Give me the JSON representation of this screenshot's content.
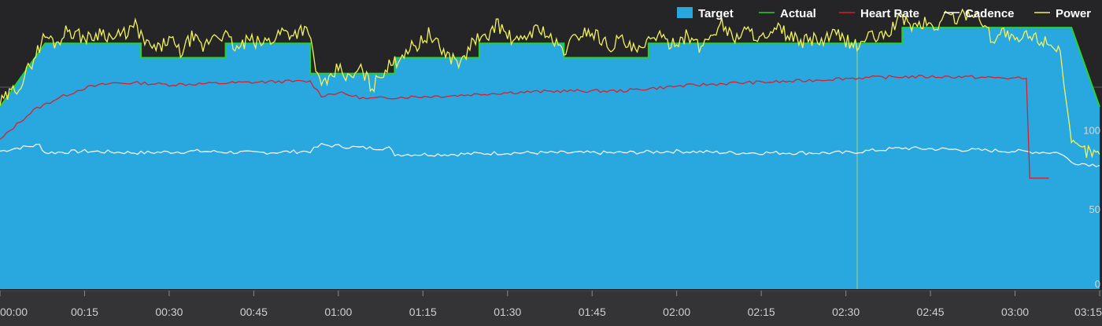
{
  "colors": {
    "background": "#252527",
    "target": "#29a8e0",
    "actual": "#2bd12b",
    "heart_rate": "#d8202a",
    "cadence": "#ffffff",
    "power": "#f2f25a",
    "cursor": "#9ccf8c",
    "axis_band": "#343437"
  },
  "chart_data": {
    "type": "area",
    "grid": false,
    "legend_position": "top-right",
    "legend": [
      {
        "label": "Target",
        "symbol": "box"
      },
      {
        "label": "Actual",
        "symbol": "line"
      },
      {
        "label": "Heart Rate",
        "symbol": "line"
      },
      {
        "label": "Cadence",
        "symbol": "line"
      },
      {
        "label": "Power",
        "symbol": "line"
      }
    ],
    "x_tick_labels": [
      "00:00",
      "00:15",
      "00:30",
      "00:45",
      "01:00",
      "01:15",
      "01:30",
      "01:45",
      "02:00",
      "02:15",
      "02:30",
      "02:45",
      "03:00",
      "03:15"
    ],
    "x_unit": "minutes",
    "xlim": [
      0,
      195
    ],
    "y_tick_labels": [
      "0",
      "50",
      "100"
    ],
    "y_ticks": [
      0,
      50,
      100
    ],
    "ylim": [
      0,
      173
    ],
    "cursor_x": 152,
    "series": [
      {
        "name": "Target",
        "kind": "area",
        "points": [
          [
            0,
            115
          ],
          [
            8,
            155
          ],
          [
            25,
            155
          ],
          [
            25,
            146
          ],
          [
            40,
            146
          ],
          [
            40,
            155
          ],
          [
            55,
            155
          ],
          [
            55,
            136
          ],
          [
            70,
            136
          ],
          [
            70,
            146
          ],
          [
            85,
            146
          ],
          [
            85,
            155
          ],
          [
            100,
            155
          ],
          [
            100,
            146
          ],
          [
            115,
            146
          ],
          [
            115,
            155
          ],
          [
            160,
            155
          ],
          [
            160,
            165
          ],
          [
            190,
            165
          ],
          [
            195,
            115
          ]
        ]
      },
      {
        "name": "Actual",
        "kind": "line",
        "points": [
          [
            0,
            115
          ],
          [
            8,
            155
          ],
          [
            25,
            155
          ],
          [
            25,
            146
          ],
          [
            40,
            146
          ],
          [
            40,
            155
          ],
          [
            55,
            155
          ],
          [
            55,
            136
          ],
          [
            70,
            136
          ],
          [
            70,
            146
          ],
          [
            85,
            146
          ],
          [
            85,
            155
          ],
          [
            100,
            155
          ],
          [
            100,
            146
          ],
          [
            115,
            146
          ],
          [
            115,
            155
          ],
          [
            160,
            155
          ],
          [
            160,
            165
          ],
          [
            190,
            165
          ],
          [
            195,
            115
          ]
        ]
      },
      {
        "name": "Heart Rate",
        "kind": "line",
        "points": [
          [
            0,
            94
          ],
          [
            3,
            104
          ],
          [
            6,
            113
          ],
          [
            10,
            120
          ],
          [
            15,
            127
          ],
          [
            20,
            130
          ],
          [
            25,
            130
          ],
          [
            30,
            129
          ],
          [
            40,
            130
          ],
          [
            50,
            131
          ],
          [
            55,
            131
          ],
          [
            57,
            122
          ],
          [
            60,
            124
          ],
          [
            65,
            120
          ],
          [
            70,
            121
          ],
          [
            80,
            122
          ],
          [
            90,
            124
          ],
          [
            100,
            125
          ],
          [
            110,
            125
          ],
          [
            120,
            128
          ],
          [
            130,
            130
          ],
          [
            140,
            131
          ],
          [
            150,
            133
          ],
          [
            160,
            134
          ],
          [
            170,
            134
          ],
          [
            180,
            133
          ],
          [
            182,
            133
          ],
          [
            182.6,
            70
          ],
          [
            186,
            70
          ]
        ]
      },
      {
        "name": "Cadence",
        "kind": "line",
        "points": [
          [
            0,
            87
          ],
          [
            3,
            89
          ],
          [
            7,
            91
          ],
          [
            8,
            86
          ],
          [
            15,
            87
          ],
          [
            25,
            86
          ],
          [
            35,
            87
          ],
          [
            45,
            86
          ],
          [
            55,
            87
          ],
          [
            57,
            91
          ],
          [
            65,
            89
          ],
          [
            69,
            89
          ],
          [
            70,
            85
          ],
          [
            80,
            85
          ],
          [
            90,
            86
          ],
          [
            100,
            86
          ],
          [
            110,
            86
          ],
          [
            120,
            87
          ],
          [
            130,
            86
          ],
          [
            140,
            86
          ],
          [
            150,
            86
          ],
          [
            160,
            89
          ],
          [
            170,
            88
          ],
          [
            180,
            87
          ],
          [
            188,
            86
          ],
          [
            190,
            80
          ],
          [
            195,
            78
          ]
        ]
      },
      {
        "name": "Power",
        "kind": "line",
        "points": [
          [
            0,
            117
          ],
          [
            2,
            124
          ],
          [
            4,
            131
          ],
          [
            6,
            146
          ],
          [
            8,
            160
          ],
          [
            10,
            155
          ],
          [
            12,
            164
          ],
          [
            14,
            160
          ],
          [
            16,
            158
          ],
          [
            18,
            163
          ],
          [
            20,
            158
          ],
          [
            22,
            161
          ],
          [
            24,
            166
          ],
          [
            26,
            154
          ],
          [
            28,
            151
          ],
          [
            30,
            158
          ],
          [
            32,
            149
          ],
          [
            34,
            159
          ],
          [
            36,
            152
          ],
          [
            38,
            161
          ],
          [
            40,
            160
          ],
          [
            42,
            151
          ],
          [
            44,
            157
          ],
          [
            46,
            155
          ],
          [
            48,
            157
          ],
          [
            50,
            163
          ],
          [
            52,
            161
          ],
          [
            54,
            165
          ],
          [
            55.5,
            152
          ],
          [
            56,
            136
          ],
          [
            58,
            128
          ],
          [
            60,
            140
          ],
          [
            62,
            132
          ],
          [
            64,
            139
          ],
          [
            66,
            127
          ],
          [
            68,
            138
          ],
          [
            70,
            143
          ],
          [
            72,
            151
          ],
          [
            74,
            154
          ],
          [
            76,
            161
          ],
          [
            78,
            152
          ],
          [
            80,
            146
          ],
          [
            82,
            143
          ],
          [
            84,
            158
          ],
          [
            86,
            157
          ],
          [
            88,
            168
          ],
          [
            90,
            160
          ],
          [
            92,
            155
          ],
          [
            94,
            162
          ],
          [
            96,
            165
          ],
          [
            98,
            156
          ],
          [
            100,
            150
          ],
          [
            102,
            159
          ],
          [
            104,
            163
          ],
          [
            106,
            160
          ],
          [
            108,
            153
          ],
          [
            110,
            158
          ],
          [
            112,
            151
          ],
          [
            114,
            150
          ],
          [
            116,
            162
          ],
          [
            118,
            155
          ],
          [
            120,
            157
          ],
          [
            122,
            160
          ],
          [
            124,
            152
          ],
          [
            126,
            160
          ],
          [
            128,
            168
          ],
          [
            130,
            158
          ],
          [
            132,
            163
          ],
          [
            134,
            161
          ],
          [
            136,
            157
          ],
          [
            138,
            164
          ],
          [
            140,
            160
          ],
          [
            142,
            155
          ],
          [
            144,
            158
          ],
          [
            146,
            156
          ],
          [
            148,
            161
          ],
          [
            150,
            157
          ],
          [
            152,
            153
          ],
          [
            154,
            160
          ],
          [
            156,
            158
          ],
          [
            158,
            164
          ],
          [
            160,
            172
          ],
          [
            162,
            165
          ],
          [
            164,
            168
          ],
          [
            166,
            165
          ],
          [
            168,
            174
          ],
          [
            170,
            170
          ],
          [
            172,
            176
          ],
          [
            174,
            170
          ],
          [
            176,
            158
          ],
          [
            178,
            163
          ],
          [
            180,
            155
          ],
          [
            182,
            160
          ],
          [
            184,
            158
          ],
          [
            186,
            156
          ],
          [
            188,
            152
          ],
          [
            189,
            116
          ],
          [
            190,
            91
          ],
          [
            192,
            88
          ],
          [
            194,
            86
          ],
          [
            195,
            85
          ]
        ]
      }
    ]
  }
}
